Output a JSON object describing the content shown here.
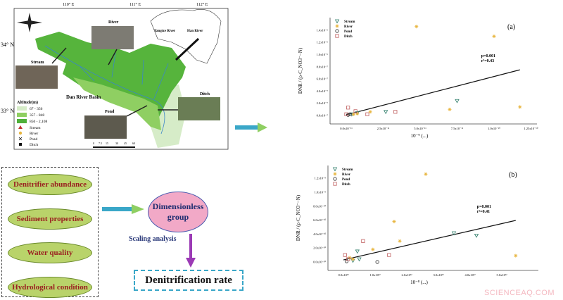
{
  "map": {
    "lon_labels": [
      "110° E",
      "111° E",
      "112° E"
    ],
    "lat_labels": [
      "34° N",
      "33° N"
    ],
    "basin_label": "Dan River Basin",
    "photo_labels": {
      "river": "River",
      "stream": "Stream",
      "pond": "Pond",
      "ditch": "Ditch"
    },
    "inset_labels": [
      "Yangtze River",
      "Han River"
    ],
    "legend_title": "Altitude(m)",
    "legend_ranges": [
      "67 - 356",
      "357 - 848",
      "850 - 2,108"
    ],
    "legend_symbols": [
      "Stream",
      "River",
      "Pond",
      "Ditch"
    ],
    "scale_ticks": [
      "0",
      "7.5",
      "15",
      "30",
      "45",
      "60"
    ],
    "colors": {
      "low": "#d6ecc8",
      "mid": "#8fcf62",
      "high": "#4fb03a",
      "river": "#3a86c8"
    }
  },
  "flow": {
    "factors": [
      "Denitrifier abundance",
      "Sediment properties",
      "Water quality",
      "Hydrological condition"
    ],
    "group_line1": "Dimensionless",
    "group_line2": "group",
    "scaling": "Scaling analysis",
    "target": "Denitrification rate"
  },
  "watermark": "SCIENCEAQ.COM",
  "chart_data": [
    {
      "type": "scatter",
      "panel": "(a)",
      "ylabel": "DNR / (ρ·C_NO3⁻−N)",
      "xlabel": "10⁻⁹ (...)",
      "x_ticks": [
        "0.0x10⁻¹¹",
        "2.5x10⁻¹¹",
        "5.0x10⁻¹¹",
        "7.5x10⁻¹¹",
        "1.0x10⁻¹⁰",
        "1.25x10⁻¹⁰"
      ],
      "y_ticks": [
        "0.0x10⁻⁷",
        "2.0x10⁻⁷",
        "4.0x10⁻⁷",
        "6.0x10⁻⁷",
        "8.0x10⁻⁷",
        "1.0x10⁻⁶",
        "1.2x10⁻⁶",
        "1.4x10⁻⁶"
      ],
      "legend": [
        "Stream",
        "River",
        "Pond",
        "Ditch"
      ],
      "legend_position": "top-left",
      "stats": {
        "p": "p=0.001",
        "r2": "r²=0.43"
      },
      "colors": {
        "Stream": "#2f7d6a",
        "River": "#e8b640",
        "Pond": "#333333",
        "Ditch": "#c06060"
      },
      "series": [
        {
          "name": "Stream",
          "x": [
            3.0,
            1.07,
            0.15,
            0.3
          ],
          "y": [
            1.2,
            0.3,
            0.1,
            0.2
          ]
        },
        {
          "name": "River",
          "x": [
            1.9,
            4.0,
            4.7,
            2.8,
            0.65,
            0.2,
            0.3
          ],
          "y": [
            7.3,
            6.5,
            0.7,
            0.5,
            0.3,
            0.1,
            0.15
          ]
        },
        {
          "name": "Pond",
          "x": [
            0.05,
            0.1
          ],
          "y": [
            0.05,
            0.1
          ]
        },
        {
          "name": "Ditch",
          "x": [
            1.33,
            0.57,
            0.05,
            0.25,
            0.0
          ],
          "y": [
            0.3,
            0.1,
            0.65,
            0.35,
            0.1
          ]
        }
      ],
      "fit": {
        "x": [
          0,
          4.7
        ],
        "y": [
          0.06,
          3.75
        ]
      }
    },
    {
      "type": "scatter",
      "panel": "(b)",
      "ylabel": "DNR / (ρ·C_NO3⁻−N)",
      "xlabel": "10⁻⁸ (...)",
      "x_ticks": [
        "0.0x10¹²",
        "1.0x10¹²",
        "2.0x10¹²",
        "3.0x10¹²",
        "4.0x10¹²",
        "5.0x10¹²"
      ],
      "y_ticks": [
        "0.0x10⁻¹⁰",
        "2.0x10⁻¹⁰",
        "4.0x10⁻¹⁰",
        "6.0x10⁻¹⁰",
        "8.0x10⁻¹⁰",
        "1.0x10⁻⁹",
        "1.2x10⁻⁹"
      ],
      "legend": [
        "Stream",
        "River",
        "Pond",
        "Ditch"
      ],
      "legend_position": "top-left",
      "stats": {
        "p": "p=0.001",
        "r2": "r²=0.41"
      },
      "colors": {
        "Stream": "#2f7d6a",
        "River": "#e8b640",
        "Pond": "#333333",
        "Ditch": "#c06060"
      },
      "series": [
        {
          "name": "Stream",
          "x": [
            3.49,
            4.2,
            0.44,
            0.5,
            0.3
          ],
          "y": [
            2.07,
            1.9,
            0.76,
            0.2,
            0.1
          ]
        },
        {
          "name": "River",
          "x": [
            2.6,
            1.6,
            1.78,
            0.93,
            5.44,
            0.3,
            0.2
          ],
          "y": [
            6.3,
            2.9,
            1.5,
            0.9,
            0.45,
            0.2,
            0.3
          ]
        },
        {
          "name": "Pond",
          "x": [
            1.07,
            0.1
          ],
          "y": [
            0.0,
            0.05
          ]
        },
        {
          "name": "Ditch",
          "x": [
            0.62,
            1.44,
            0.05,
            0.15
          ],
          "y": [
            1.5,
            0.5,
            0.5,
            0.2
          ]
        }
      ],
      "fit": {
        "x": [
          0,
          5.44
        ],
        "y": [
          0.15,
          2.98
        ]
      }
    }
  ]
}
